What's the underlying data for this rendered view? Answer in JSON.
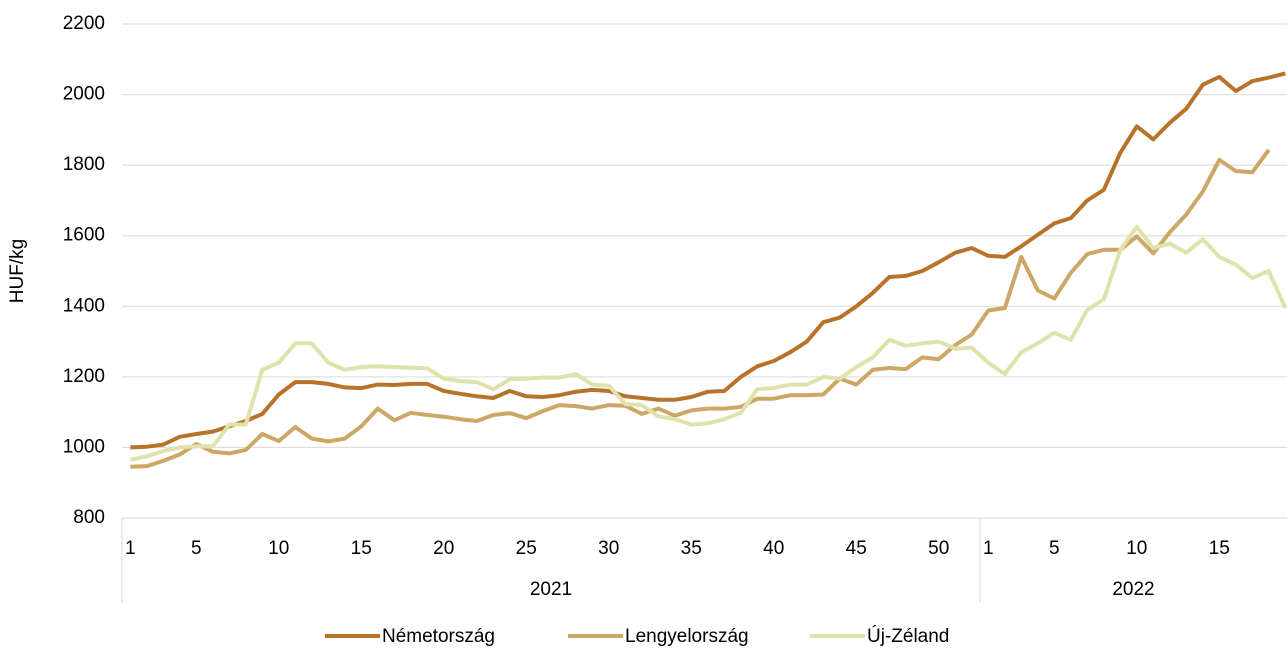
{
  "chart_data": {
    "type": "line",
    "ylabel": "HUF/kg",
    "ylim": [
      800,
      2200
    ],
    "yticks": [
      800,
      1000,
      1200,
      1400,
      1600,
      1800,
      2000,
      2200
    ],
    "grid": true,
    "legend": "bottom",
    "groups": [
      {
        "name": "2021",
        "categories": [
          "1",
          null,
          null,
          null,
          "5",
          null,
          null,
          null,
          null,
          "10",
          null,
          null,
          null,
          null,
          "15",
          null,
          null,
          null,
          null,
          "20",
          null,
          null,
          null,
          null,
          "25",
          null,
          null,
          null,
          null,
          "30",
          null,
          null,
          null,
          null,
          "35",
          null,
          null,
          null,
          null,
          "40",
          null,
          null,
          null,
          null,
          "45",
          null,
          null,
          null,
          null,
          "50",
          null,
          null
        ]
      },
      {
        "name": "2022",
        "categories": [
          "1",
          null,
          null,
          null,
          "5",
          null,
          null,
          null,
          null,
          "10",
          null,
          null,
          null,
          null,
          "15",
          null,
          null,
          null,
          null
        ]
      }
    ],
    "series": [
      {
        "name": "Németország",
        "color": "#b8732b",
        "values": [
          1000,
          1002,
          1008,
          1030,
          1038,
          1045,
          1060,
          1075,
          1095,
          1150,
          1185,
          1185,
          1180,
          1170,
          1168,
          1178,
          1177,
          1180,
          1180,
          1160,
          1152,
          1145,
          1140,
          1160,
          1145,
          1143,
          1148,
          1158,
          1163,
          1160,
          1145,
          1140,
          1135,
          1135,
          1143,
          1158,
          1160,
          1200,
          1230,
          1245,
          1270,
          1300,
          1355,
          1368,
          1400,
          1438,
          1483,
          1486,
          1500,
          1525,
          1552,
          1565,
          1543,
          1540,
          1570,
          1603,
          1635,
          1650,
          1700,
          1730,
          1835,
          1910,
          1873,
          1920,
          1960,
          2028,
          2050,
          2010,
          2038,
          2048,
          2060
        ]
      },
      {
        "name": "Lengyelország",
        "color": "#cda766",
        "values": [
          945,
          947,
          962,
          980,
          1010,
          988,
          983,
          993,
          1038,
          1018,
          1058,
          1025,
          1017,
          1025,
          1060,
          1110,
          1077,
          1098,
          1092,
          1087,
          1080,
          1075,
          1092,
          1097,
          1083,
          1103,
          1120,
          1117,
          1110,
          1120,
          1118,
          1095,
          1110,
          1090,
          1105,
          1110,
          1110,
          1115,
          1138,
          1138,
          1148,
          1148,
          1150,
          1195,
          1178,
          1220,
          1225,
          1222,
          1255,
          1250,
          1290,
          1320,
          1388,
          1395,
          1540,
          1445,
          1422,
          1495,
          1548,
          1560,
          1560,
          1598,
          1550,
          1610,
          1660,
          1725,
          1815,
          1783,
          1780,
          1843,
          null
        ]
      },
      {
        "name": "Új-Zéland",
        "color": "#dfe2ab",
        "values": [
          965,
          975,
          990,
          1000,
          1003,
          1003,
          1065,
          1065,
          1220,
          1240,
          1295,
          1295,
          1240,
          1220,
          1228,
          1230,
          1228,
          1226,
          1224,
          1195,
          1188,
          1185,
          1165,
          1193,
          1195,
          1198,
          1198,
          1208,
          1178,
          1175,
          1123,
          1120,
          1088,
          1080,
          1065,
          1068,
          1080,
          1098,
          1165,
          1168,
          1178,
          1178,
          1200,
          1195,
          1228,
          1255,
          1305,
          1288,
          1295,
          1300,
          1280,
          1283,
          1240,
          1208,
          1270,
          1295,
          1325,
          1305,
          1390,
          1420,
          1560,
          1625,
          1565,
          1578,
          1552,
          1590,
          1540,
          1518,
          1480,
          1500,
          1395
        ]
      }
    ]
  }
}
